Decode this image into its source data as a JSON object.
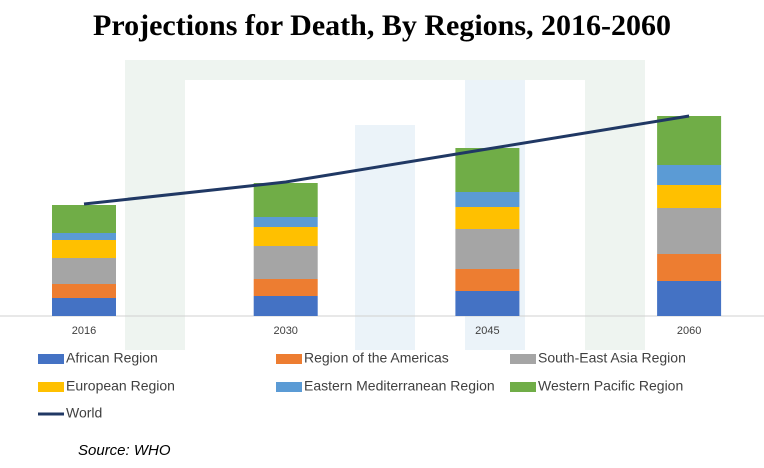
{
  "chart_data": {
    "type": "bar",
    "stacked": true,
    "title": "Projections for Death, By Regions, 2016-2060",
    "categories": [
      "2016",
      "2030",
      "2045",
      "2060"
    ],
    "series": [
      {
        "name": "African Region",
        "color": "#4472c4",
        "values": [
          18,
          20,
          25,
          35
        ]
      },
      {
        "name": "Region of the Americas",
        "color": "#ed7d31",
        "values": [
          14,
          17,
          22,
          27
        ]
      },
      {
        "name": "South-East Asia Region",
        "color": "#a5a5a5",
        "values": [
          26,
          33,
          40,
          46
        ]
      },
      {
        "name": "European Region",
        "color": "#ffc000",
        "values": [
          18,
          19,
          22,
          23
        ]
      },
      {
        "name": "Eastern Mediterranean Region",
        "color": "#5b9bd5",
        "values": [
          7,
          10,
          15,
          20
        ]
      },
      {
        "name": "Western Pacific Region",
        "color": "#70ad47",
        "values": [
          28,
          34,
          44,
          49
        ]
      },
      {
        "name": "World",
        "color": "#203864",
        "type": "line",
        "values": [
          112,
          134,
          167,
          200
        ]
      }
    ],
    "ylim": [
      0,
      230
    ],
    "source": "Source: WHO"
  }
}
